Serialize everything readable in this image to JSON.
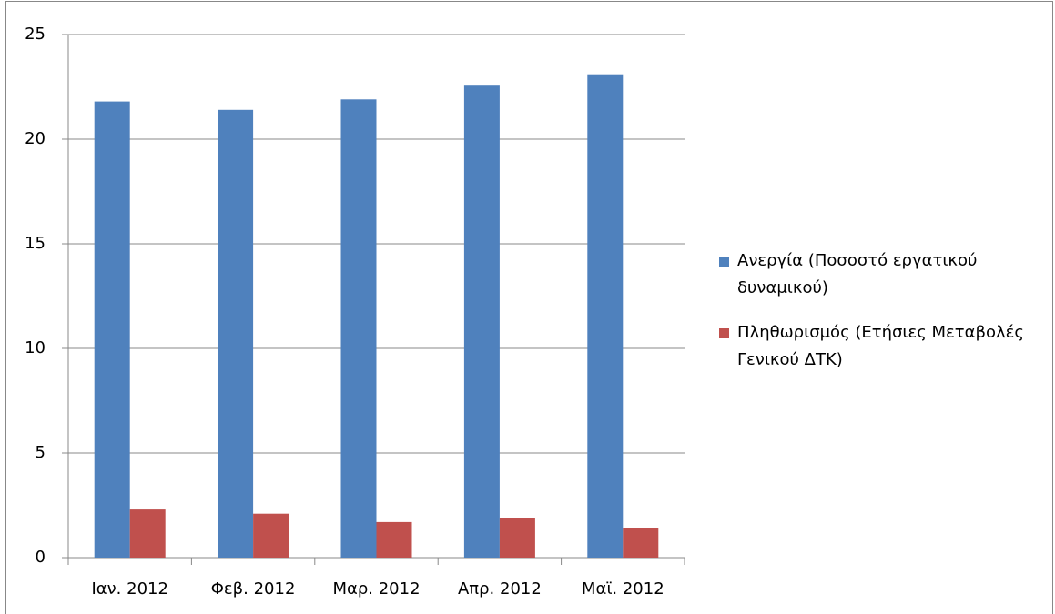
{
  "chart_data": {
    "type": "bar",
    "categories": [
      "Ιαν. 2012",
      "Φεβ. 2012",
      "Μαρ. 2012",
      "Απρ. 2012",
      "Μαϊ. 2012"
    ],
    "series": [
      {
        "name": "Ανεργία (Ποσοστό εργατικού δυναμικού)",
        "color": "#4f81bd",
        "values": [
          21.8,
          21.4,
          21.9,
          22.6,
          23.1
        ]
      },
      {
        "name": "Πληθωρισμός (Ετήσιες Μεταβολές Γενικού ΔΤΚ)",
        "color": "#c0504d",
        "values": [
          2.3,
          2.1,
          1.7,
          1.9,
          1.4
        ]
      }
    ],
    "ylim": [
      0,
      25
    ],
    "yticks": [
      0,
      5,
      10,
      15,
      20,
      25
    ],
    "grid": true,
    "legend": "right"
  }
}
